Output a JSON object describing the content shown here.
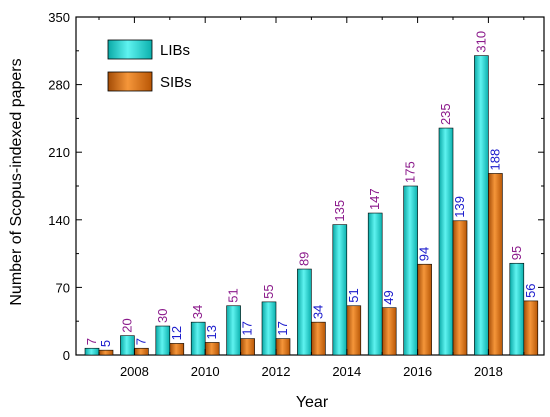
{
  "chart_data": {
    "type": "bar",
    "categories": [
      "2007",
      "2008",
      "2009",
      "2010",
      "2011",
      "2012",
      "2013",
      "2014",
      "2015",
      "2016",
      "2017",
      "2018",
      "2019"
    ],
    "x_tick_labels": [
      "2008",
      "2010",
      "2012",
      "2014",
      "2016",
      "2018"
    ],
    "series": [
      {
        "name": "LIBs",
        "values": [
          7,
          20,
          30,
          34,
          51,
          55,
          89,
          135,
          147,
          175,
          235,
          310,
          95
        ],
        "color": "#19d3cf",
        "label_color": "#8b1a8b"
      },
      {
        "name": "SIBs",
        "values": [
          5,
          7,
          12,
          13,
          17,
          17,
          34,
          51,
          49,
          94,
          139,
          188,
          56
        ],
        "color": "#e07010",
        "label_color": "#1a1acc"
      }
    ],
    "y_ticks": [
      "0",
      "70",
      "140",
      "210",
      "280",
      "350"
    ],
    "ylim": [
      0,
      350
    ],
    "xlabel": "Year",
    "ylabel": "Number of Scopus-indexed papers",
    "legend_position": "top-left",
    "data_labels": true,
    "grid": false
  }
}
